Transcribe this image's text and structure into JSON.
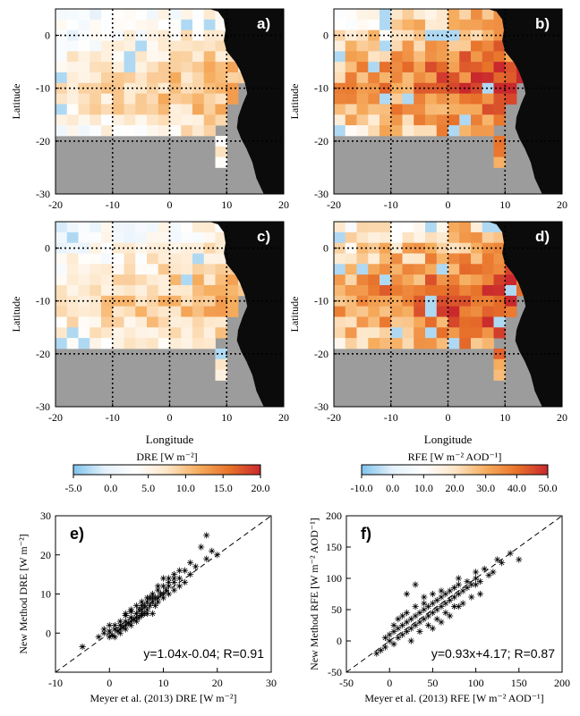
{
  "colors": {
    "land": "#9c9c9c",
    "africa": "#0b0b0b",
    "grid": "#000000",
    "scale_stops": [
      "#7fc3ec",
      "#e4f1fb",
      "#ffffff",
      "#fde6c8",
      "#f6ad5e",
      "#e8732a",
      "#c9282c"
    ]
  },
  "map_axes": {
    "xlim": [
      -20,
      20
    ],
    "ylim": [
      -30,
      5
    ],
    "xticks": [
      "-20",
      "-10",
      "0",
      "10",
      "20"
    ],
    "yticks": [
      "0",
      "-10",
      "-20",
      "-30"
    ],
    "xlabel": "Longitude",
    "ylabel": "Latitude"
  },
  "maps": [
    {
      "id": "a",
      "label": "a)",
      "variable": "DRE",
      "scale": [
        -5,
        20
      ]
    },
    {
      "id": "b",
      "label": "b)",
      "variable": "RFE",
      "scale": [
        -10,
        50
      ]
    },
    {
      "id": "c",
      "label": "c)",
      "variable": "DRE",
      "scale": [
        -5,
        20
      ]
    },
    {
      "id": "d",
      "label": "d)",
      "variable": "RFE",
      "scale": [
        -10,
        50
      ]
    }
  ],
  "colorbars": [
    {
      "label": "DRE [W m⁻²]",
      "ticks": [
        "-5.0",
        "0.0",
        "5.0",
        "10.0",
        "15.0",
        "20.0"
      ],
      "range": [
        -5,
        20
      ]
    },
    {
      "label": "RFE [W m⁻² AOD⁻¹]",
      "ticks": [
        "-10.0",
        "0.0",
        "10.0",
        "20.0",
        "30.0",
        "40.0",
        "50.0"
      ],
      "range": [
        -10,
        50
      ]
    }
  ],
  "chart_data": [
    {
      "type": "scatter",
      "id": "e",
      "label": "e)",
      "xlabel": "Meyer et al. (2013) DRE [W m⁻²]",
      "ylabel": "New Method DRE [W m⁻²]",
      "xlim": [
        -10,
        30
      ],
      "ylim": [
        -10,
        30
      ],
      "xticks": [
        "-10",
        "0",
        "10",
        "20",
        "30"
      ],
      "yticks": [
        "0",
        "10",
        "20",
        "30"
      ],
      "annotation": "y=1.04x-0.04; R=0.91",
      "fit": {
        "slope": 1.04,
        "intercept": -0.04
      },
      "reference_line": "1:1 dashed",
      "points": [
        [
          -5,
          -3.5
        ],
        [
          -2,
          -1
        ],
        [
          -1,
          0
        ],
        [
          0,
          0.5
        ],
        [
          0.5,
          -0.5
        ],
        [
          1,
          1
        ],
        [
          1.5,
          0.5
        ],
        [
          2,
          2
        ],
        [
          2,
          0
        ],
        [
          2.5,
          1.5
        ],
        [
          3,
          3
        ],
        [
          3,
          1
        ],
        [
          3.5,
          2.5
        ],
        [
          4,
          4
        ],
        [
          4,
          2
        ],
        [
          4.5,
          3.5
        ],
        [
          5,
          5
        ],
        [
          5,
          3
        ],
        [
          5.5,
          6
        ],
        [
          5.5,
          4
        ],
        [
          6,
          6
        ],
        [
          6,
          4.5
        ],
        [
          6.5,
          7
        ],
        [
          6.5,
          5
        ],
        [
          7,
          8
        ],
        [
          7,
          6
        ],
        [
          7.5,
          7
        ],
        [
          7.5,
          9
        ],
        [
          8,
          8
        ],
        [
          8,
          10
        ],
        [
          8.5,
          9
        ],
        [
          8.5,
          7
        ],
        [
          9,
          11
        ],
        [
          9,
          9
        ],
        [
          9.5,
          10
        ],
        [
          10,
          12
        ],
        [
          10,
          10
        ],
        [
          10.5,
          11
        ],
        [
          11,
          13
        ],
        [
          11,
          10
        ],
        [
          12,
          13
        ],
        [
          12,
          15
        ],
        [
          13,
          14
        ],
        [
          13,
          16
        ],
        [
          14,
          16
        ],
        [
          15,
          18
        ],
        [
          15,
          15
        ],
        [
          16,
          17
        ],
        [
          17,
          22
        ],
        [
          18,
          25
        ],
        [
          18,
          19
        ],
        [
          19,
          21
        ],
        [
          20,
          20
        ],
        [
          -1,
          1
        ],
        [
          0,
          2
        ],
        [
          1,
          -1
        ],
        [
          3,
          4.5
        ],
        [
          4,
          5.5
        ],
        [
          5,
          7
        ],
        [
          6,
          8
        ],
        [
          8,
          5
        ],
        [
          9,
          12
        ],
        [
          10,
          14
        ],
        [
          11,
          12
        ],
        [
          12,
          11
        ],
        [
          3,
          2
        ],
        [
          2,
          3
        ],
        [
          4,
          3
        ],
        [
          6,
          5
        ],
        [
          7,
          9
        ],
        [
          5,
          4
        ],
        [
          1,
          2
        ],
        [
          0,
          -1
        ],
        [
          2,
          1
        ],
        [
          3,
          5
        ],
        [
          4,
          6
        ],
        [
          6,
          7
        ],
        [
          7,
          5
        ],
        [
          8,
          9
        ],
        [
          9,
          8
        ],
        [
          10,
          9
        ],
        [
          11,
          14
        ],
        [
          12,
          14
        ],
        [
          13,
          12
        ],
        [
          14,
          13
        ]
      ]
    },
    {
      "type": "scatter",
      "id": "f",
      "label": "f)",
      "xlabel": "Meyer et al. (2013) RFE [W m⁻² AOD⁻¹]",
      "ylabel": "New Method RFE [W m⁻² AOD⁻¹]",
      "xlim": [
        -50,
        200
      ],
      "ylim": [
        -50,
        200
      ],
      "xticks": [
        "-50",
        "0",
        "50",
        "100",
        "150",
        "200"
      ],
      "yticks": [
        "-50",
        "0",
        "50",
        "100",
        "150",
        "200"
      ],
      "annotation": "y=0.93x+4.17; R=0.87",
      "fit": {
        "slope": 0.93,
        "intercept": 4.17
      },
      "reference_line": "1:1 dashed",
      "points": [
        [
          -15,
          -20
        ],
        [
          -10,
          -15
        ],
        [
          -5,
          -10
        ],
        [
          0,
          0
        ],
        [
          0,
          10
        ],
        [
          5,
          -5
        ],
        [
          5,
          15
        ],
        [
          10,
          5
        ],
        [
          10,
          20
        ],
        [
          15,
          10
        ],
        [
          15,
          25
        ],
        [
          20,
          15
        ],
        [
          20,
          30
        ],
        [
          25,
          20
        ],
        [
          25,
          35
        ],
        [
          30,
          25
        ],
        [
          30,
          40
        ],
        [
          35,
          30
        ],
        [
          35,
          45
        ],
        [
          40,
          35
        ],
        [
          40,
          50
        ],
        [
          45,
          40
        ],
        [
          45,
          55
        ],
        [
          50,
          45
        ],
        [
          50,
          60
        ],
        [
          55,
          50
        ],
        [
          55,
          65
        ],
        [
          60,
          55
        ],
        [
          60,
          70
        ],
        [
          65,
          60
        ],
        [
          65,
          75
        ],
        [
          70,
          65
        ],
        [
          70,
          80
        ],
        [
          75,
          70
        ],
        [
          75,
          85
        ],
        [
          80,
          75
        ],
        [
          80,
          90
        ],
        [
          85,
          80
        ],
        [
          90,
          95
        ],
        [
          90,
          85
        ],
        [
          95,
          90
        ],
        [
          100,
          100
        ],
        [
          100,
          110
        ],
        [
          105,
          95
        ],
        [
          110,
          115
        ],
        [
          115,
          105
        ],
        [
          120,
          110
        ],
        [
          125,
          130
        ],
        [
          130,
          125
        ],
        [
          140,
          140
        ],
        [
          150,
          130
        ],
        [
          20,
          75
        ],
        [
          30,
          90
        ],
        [
          40,
          70
        ],
        [
          60,
          30
        ],
        [
          70,
          40
        ],
        [
          80,
          55
        ],
        [
          50,
          20
        ],
        [
          30,
          55
        ],
        [
          20,
          45
        ],
        [
          10,
          35
        ],
        [
          25,
          0
        ],
        [
          35,
          15
        ],
        [
          45,
          25
        ],
        [
          55,
          35
        ],
        [
          65,
          45
        ],
        [
          75,
          55
        ],
        [
          85,
          60
        ],
        [
          95,
          70
        ],
        [
          105,
          75
        ],
        [
          15,
          40
        ],
        [
          5,
          25
        ],
        [
          -5,
          5
        ],
        [
          40,
          60
        ],
        [
          60,
          80
        ],
        [
          80,
          100
        ],
        [
          100,
          90
        ],
        [
          50,
          75
        ]
      ]
    }
  ]
}
